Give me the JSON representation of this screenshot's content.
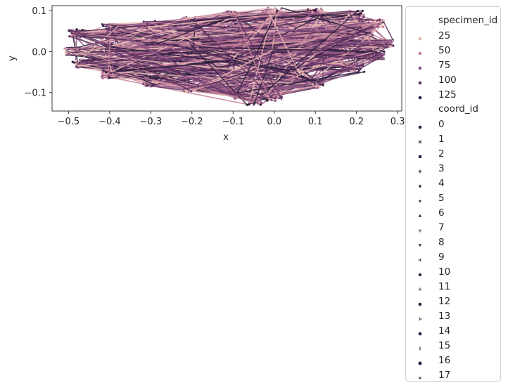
{
  "chart_data": {
    "type": "line",
    "title": "",
    "xlabel": "x",
    "ylabel": "y",
    "xlim": [
      -0.54,
      0.31
    ],
    "ylim": [
      -0.145,
      0.112
    ],
    "x_ticks": [
      -0.5,
      -0.4,
      -0.3,
      -0.2,
      -0.1,
      0.0,
      0.1,
      0.2,
      0.3
    ],
    "x_tick_labels": [
      "−0.5",
      "−0.4",
      "−0.3",
      "−0.2",
      "−0.1",
      "0.0",
      "0.1",
      "0.2",
      "0.3"
    ],
    "y_ticks": [
      -0.1,
      0.0,
      0.1
    ],
    "y_tick_labels": [
      "−0.1",
      "0.0",
      "0.1"
    ],
    "grid": false,
    "legend_position": "outside-right",
    "hue": {
      "title": "specimen_id",
      "entries": [
        {
          "label": "25",
          "color": "#e7b5b3"
        },
        {
          "label": "50",
          "color": "#c47f9a"
        },
        {
          "label": "75",
          "color": "#8f5584"
        },
        {
          "label": "100",
          "color": "#5e3363"
        },
        {
          "label": "125",
          "color": "#2d1e3e"
        }
      ]
    },
    "style": {
      "title": "coord_id",
      "entries": [
        {
          "label": "0",
          "marker": "circle"
        },
        {
          "label": "1",
          "marker": "x"
        },
        {
          "label": "2",
          "marker": "square"
        },
        {
          "label": "3",
          "marker": "plus"
        },
        {
          "label": "4",
          "marker": "diamond"
        },
        {
          "label": "5",
          "marker": "star"
        },
        {
          "label": "6",
          "marker": "triangle-up"
        },
        {
          "label": "7",
          "marker": "tri-down"
        },
        {
          "label": "8",
          "marker": "triangle-down"
        },
        {
          "label": "9",
          "marker": "tri-left"
        },
        {
          "label": "10",
          "marker": "pentagon"
        },
        {
          "label": "11",
          "marker": "tri-up"
        },
        {
          "label": "12",
          "marker": "circle"
        },
        {
          "label": "13",
          "marker": "tri-right"
        },
        {
          "label": "14",
          "marker": "hexagon"
        },
        {
          "label": "15",
          "marker": "vline"
        },
        {
          "label": "16",
          "marker": "octagon"
        },
        {
          "label": "17",
          "marker": "x-small"
        }
      ]
    },
    "outline_points": [
      {
        "x": 0.27,
        "y": 0.02
      },
      {
        "x": 0.25,
        "y": 0.07
      },
      {
        "x": 0.2,
        "y": 0.09
      },
      {
        "x": 0.1,
        "y": 0.095
      },
      {
        "x": 0.0,
        "y": 0.098
      },
      {
        "x": -0.1,
        "y": 0.09
      },
      {
        "x": -0.2,
        "y": 0.075
      },
      {
        "x": -0.3,
        "y": 0.065
      },
      {
        "x": -0.4,
        "y": 0.058
      },
      {
        "x": -0.48,
        "y": 0.045
      },
      {
        "x": -0.49,
        "y": 0.0
      },
      {
        "x": -0.47,
        "y": -0.03
      },
      {
        "x": -0.4,
        "y": -0.055
      },
      {
        "x": -0.3,
        "y": -0.075
      },
      {
        "x": -0.2,
        "y": -0.09
      },
      {
        "x": -0.1,
        "y": -0.105
      },
      {
        "x": -0.05,
        "y": -0.12
      },
      {
        "x": 0.0,
        "y": -0.11
      },
      {
        "x": 0.1,
        "y": -0.08
      },
      {
        "x": 0.2,
        "y": -0.04
      },
      {
        "x": 0.25,
        "y": -0.01
      },
      {
        "x": 0.0,
        "y": 0.01
      },
      {
        "x": -0.1,
        "y": 0.0
      },
      {
        "x": -0.2,
        "y": 0.01
      },
      {
        "x": -0.3,
        "y": 0.02
      },
      {
        "x": -0.4,
        "y": 0.01
      },
      {
        "x": -0.1,
        "y": -0.02
      },
      {
        "x": 0.05,
        "y": -0.05
      },
      {
        "x": 0.15,
        "y": 0.03
      },
      {
        "x": 0.22,
        "y": 0.05
      }
    ]
  }
}
